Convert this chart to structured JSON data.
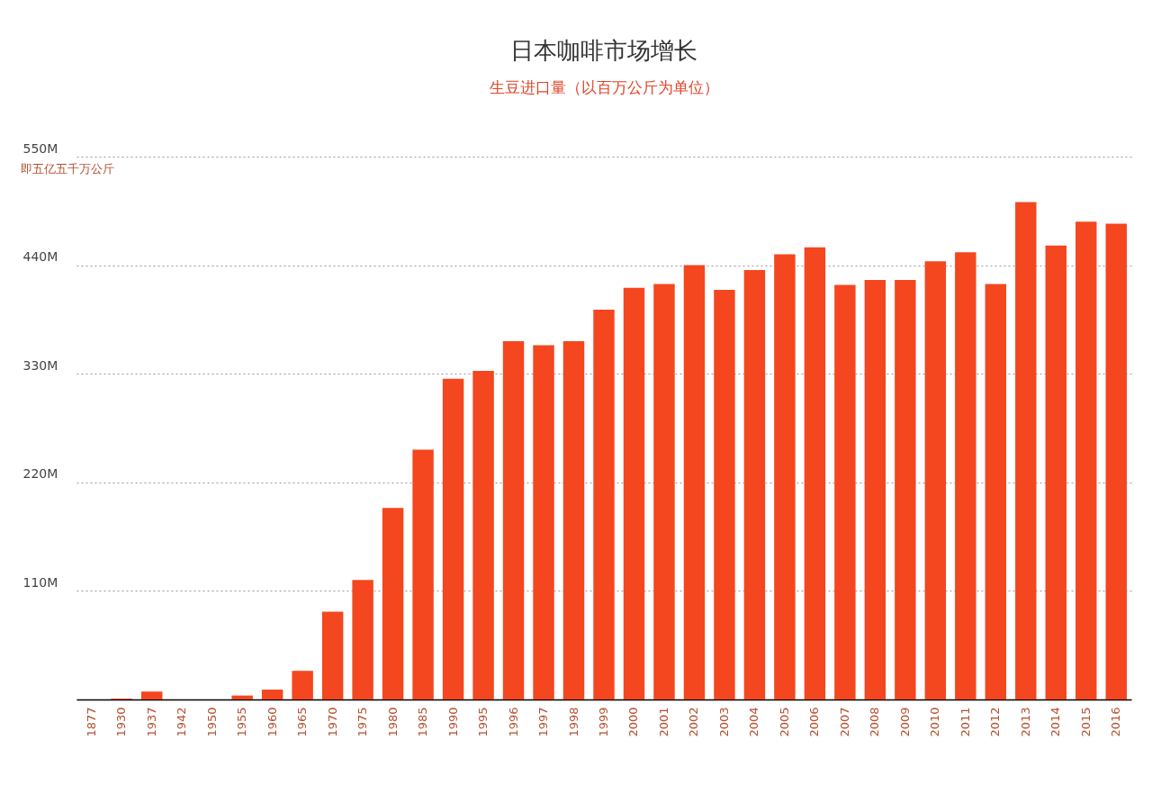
{
  "chart_data": {
    "type": "bar",
    "title": "日本咖啡市场增长",
    "subtitle": "生豆进口量（以百万公斤为单位）",
    "annotations": [
      "即五亿五千万公斤"
    ],
    "categories": [
      "1877",
      "1930",
      "1937",
      "1942",
      "1950",
      "1955",
      "1960",
      "1965",
      "1970",
      "1975",
      "1980",
      "1985",
      "1990",
      "1995",
      "1996",
      "1997",
      "1998",
      "1999",
      "2000",
      "2001",
      "2002",
      "2003",
      "2004",
      "2005",
      "2006",
      "2007",
      "2008",
      "2009",
      "2010",
      "2011",
      "2012",
      "2013",
      "2014",
      "2015",
      "2016"
    ],
    "values": [
      0,
      1,
      8,
      0,
      0,
      4,
      10,
      29,
      89,
      121,
      194,
      253,
      325,
      333,
      363,
      359,
      363,
      395,
      417,
      421,
      440,
      415,
      435,
      451,
      458,
      420,
      425,
      425,
      444,
      453,
      421,
      504,
      460,
      484,
      482
    ],
    "color": "#f4461f",
    "ylim": [
      0,
      550
    ],
    "yticks": [
      {
        "value": 0,
        "label": null
      },
      {
        "value": 110,
        "label": "110M"
      },
      {
        "value": 220,
        "label": "220M"
      },
      {
        "value": 330,
        "label": "330M"
      },
      {
        "value": 440,
        "label": "440M"
      },
      {
        "value": 550,
        "label": "550M"
      }
    ],
    "grid": "y"
  }
}
